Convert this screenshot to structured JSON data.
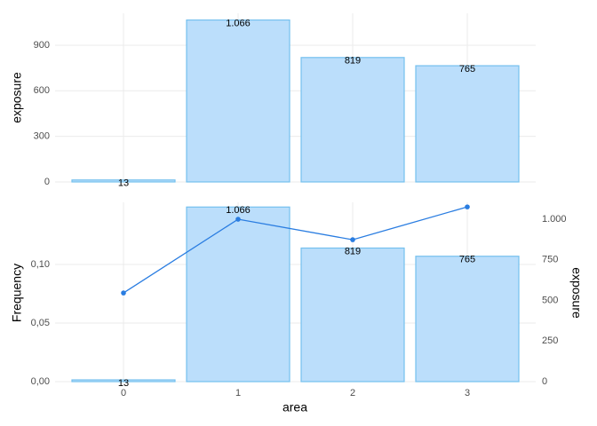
{
  "chart_data": [
    {
      "type": "bar",
      "ylabel": "exposure",
      "values": [
        13,
        1066,
        819,
        765
      ],
      "value_labels": [
        "13",
        "1.066",
        "819",
        "765"
      ],
      "color": "#bbdefb",
      "edge_color": "#74c0ee",
      "ylim": [
        0,
        1110
      ],
      "yticks": [
        0,
        300,
        600,
        900
      ],
      "grid": true
    },
    {
      "type": "bar-line",
      "xlabel": "area",
      "ylabel": "Frequency",
      "y2label": "exposure",
      "categories": [
        "0",
        "1",
        "2",
        "3"
      ],
      "series": [
        {
          "type": "bar",
          "values": [
            0.0015,
            0.149,
            0.114,
            0.107
          ],
          "color": "#bbdefb",
          "edge_color": "#74c0ee"
        },
        {
          "type": "line",
          "axis": "y2",
          "values": [
            546,
            1000,
            874,
            1076
          ],
          "color": "#2a7de1"
        }
      ],
      "bar_labels": [
        "13",
        "1.066",
        "819",
        "765"
      ],
      "ylim": [
        0,
        0.153
      ],
      "yticks": [
        {
          "value": 0,
          "label": "0,00"
        },
        {
          "value": 0.05,
          "label": "0,05"
        },
        {
          "value": 0.1,
          "label": "0,10"
        }
      ],
      "y2lim": [
        0,
        1104
      ],
      "y2ticks": [
        0,
        250,
        500,
        750,
        {
          "value": 1000,
          "label": "1.000"
        }
      ],
      "grid": true
    }
  ]
}
